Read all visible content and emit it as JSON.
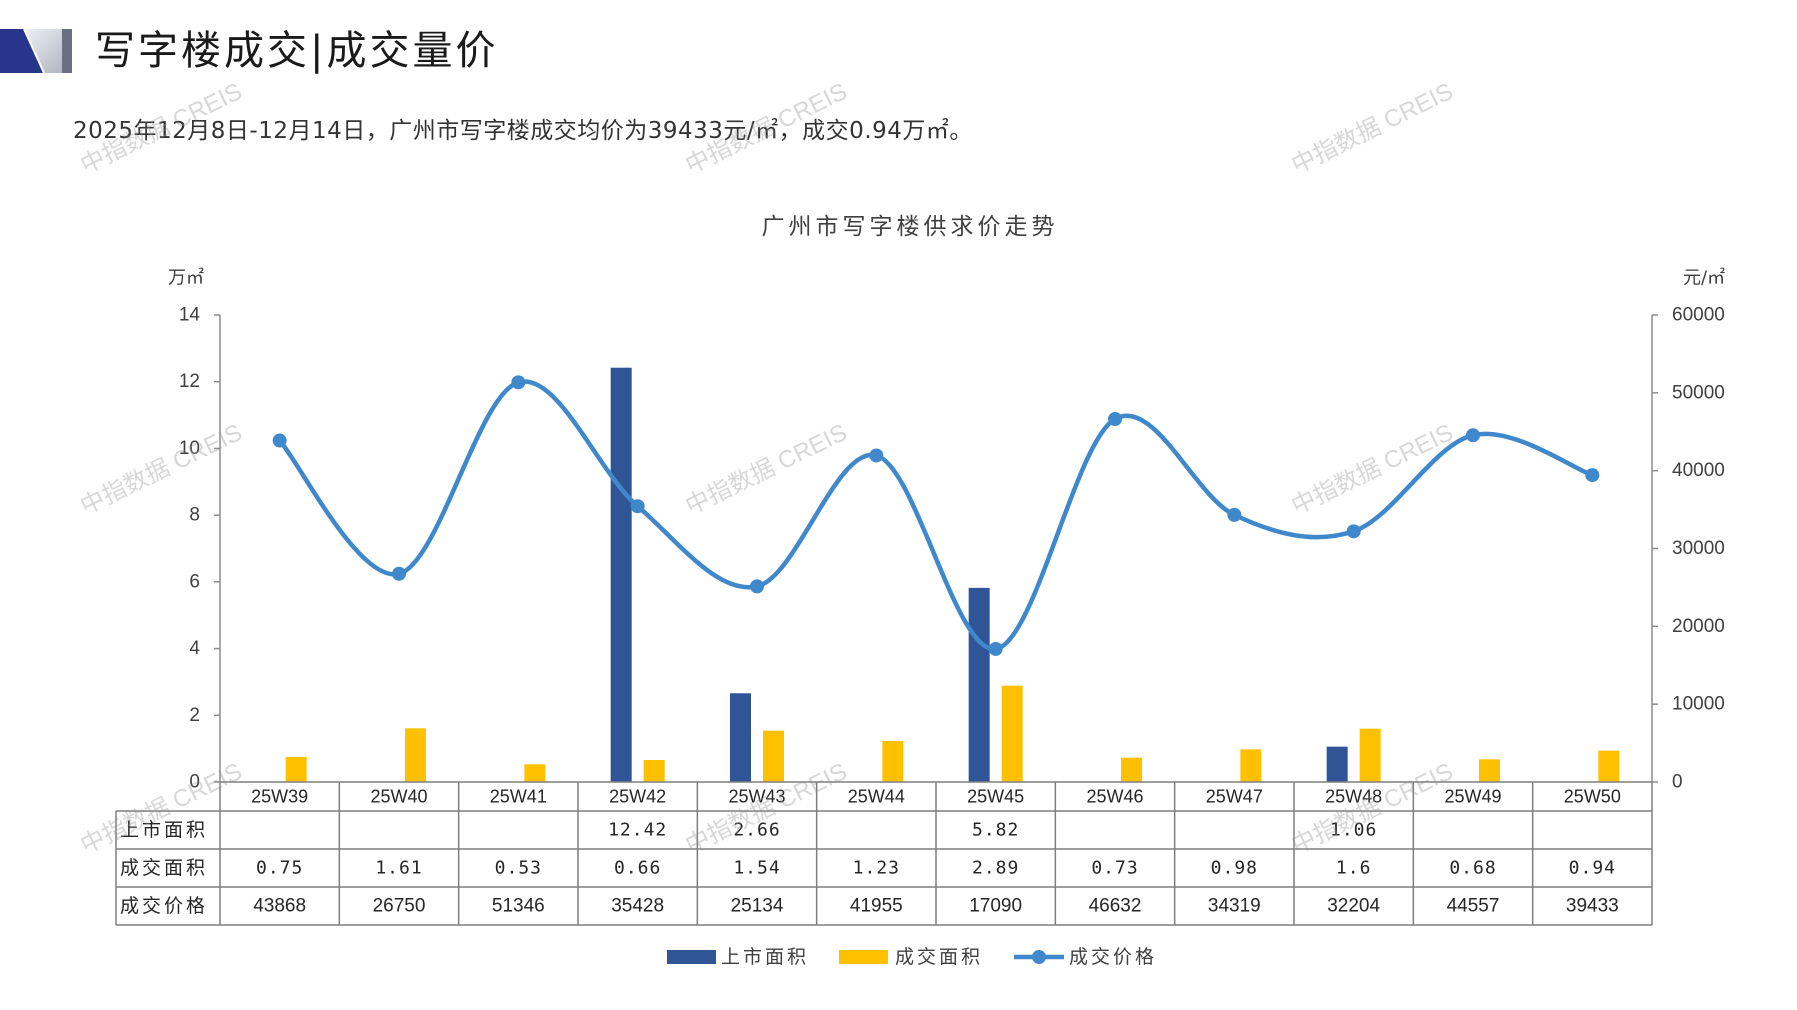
{
  "header": {
    "title": "写字楼成交|成交量价",
    "subtitle": "2025年12月8日-12月14日，广州市写字楼成交均价为39433元/㎡，成交0.94万㎡。"
  },
  "brand_colors": {
    "primary": "#27368A",
    "light": "#C9CDD8",
    "dark": "#6B7080"
  },
  "watermark": "中指数据 CREIS",
  "chart_data": {
    "type": "bar",
    "title": "广州市写字楼供求价走势",
    "categories": [
      "25W39",
      "25W40",
      "25W41",
      "25W42",
      "25W43",
      "25W44",
      "25W45",
      "25W46",
      "25W47",
      "25W48",
      "25W49",
      "25W50"
    ],
    "y_left": {
      "label": "万㎡",
      "range": [
        0,
        14
      ],
      "ticks": [
        0,
        2,
        4,
        6,
        8,
        10,
        12,
        14
      ]
    },
    "y_right": {
      "label": "元/㎡",
      "range": [
        0,
        60000
      ],
      "ticks": [
        0,
        10000,
        20000,
        30000,
        40000,
        50000,
        60000
      ]
    },
    "series": [
      {
        "name": "上市面积",
        "type": "bar",
        "axis": "left",
        "color": "#2F5597",
        "values": [
          null,
          null,
          null,
          12.42,
          2.66,
          null,
          5.82,
          null,
          null,
          1.06,
          null,
          null
        ]
      },
      {
        "name": "成交面积",
        "type": "bar",
        "axis": "left",
        "color": "#FFC000",
        "values": [
          0.75,
          1.61,
          0.53,
          0.66,
          1.54,
          1.23,
          2.89,
          0.73,
          0.98,
          1.6,
          0.68,
          0.94
        ]
      },
      {
        "name": "成交价格",
        "type": "line",
        "axis": "right",
        "color": "#3F88CB",
        "smooth": true,
        "markers": true,
        "values": [
          43868,
          26750,
          51346,
          35428,
          25134,
          41955,
          17090,
          46632,
          34319,
          32204,
          44557,
          39433
        ]
      }
    ],
    "data_table": true,
    "legend_position": "bottom",
    "grid": false
  }
}
